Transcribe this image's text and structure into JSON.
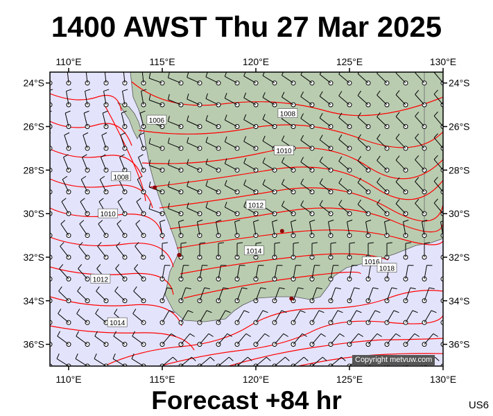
{
  "title": "1400 AWST Thu 27 Mar 2025",
  "subtitle": "Forecast +84 hr",
  "region_code": "US6",
  "copyright": "Copyright metvuw.com",
  "colors": {
    "sea": "#e3e3fb",
    "land": "#b9ccb0",
    "isobar": "#ff0000",
    "frame": "#000000",
    "station": "#8b0000"
  },
  "map": {
    "lon_range": [
      109,
      130
    ],
    "lat_range": [
      -23.5,
      -37
    ],
    "lon_ticks": [
      {
        "value": 110,
        "label": "110°E"
      },
      {
        "value": 115,
        "label": "115°E"
      },
      {
        "value": 120,
        "label": "120°E"
      },
      {
        "value": 125,
        "label": "125°E"
      },
      {
        "value": 130,
        "label": "130°E"
      }
    ],
    "lat_ticks": [
      {
        "value": -24,
        "label": "24°S"
      },
      {
        "value": -26,
        "label": "26°S"
      },
      {
        "value": -28,
        "label": "28°S"
      },
      {
        "value": -30,
        "label": "30°S"
      },
      {
        "value": -32,
        "label": "32°S"
      },
      {
        "value": -34,
        "label": "34°S"
      },
      {
        "value": -36,
        "label": "36°S"
      }
    ],
    "isobar_labels": [
      {
        "label": "1006",
        "lon": 114.7,
        "lat": -25.7
      },
      {
        "label": "1008",
        "lon": 121.7,
        "lat": -25.4
      },
      {
        "label": "1010",
        "lon": 121.5,
        "lat": -27.1
      },
      {
        "label": "1008",
        "lon": 112.8,
        "lat": -28.3
      },
      {
        "label": "1010",
        "lon": 112.1,
        "lat": -30.0
      },
      {
        "label": "1012",
        "lon": 120.0,
        "lat": -29.6
      },
      {
        "label": "1014",
        "lon": 119.9,
        "lat": -31.7
      },
      {
        "label": "1012",
        "lon": 111.7,
        "lat": -33.0
      },
      {
        "label": "1014",
        "lon": 112.6,
        "lat": -35.0
      },
      {
        "label": "1016",
        "lon": 126.2,
        "lat": -32.2
      },
      {
        "label": "1018",
        "lon": 127.0,
        "lat": -32.5
      }
    ]
  }
}
